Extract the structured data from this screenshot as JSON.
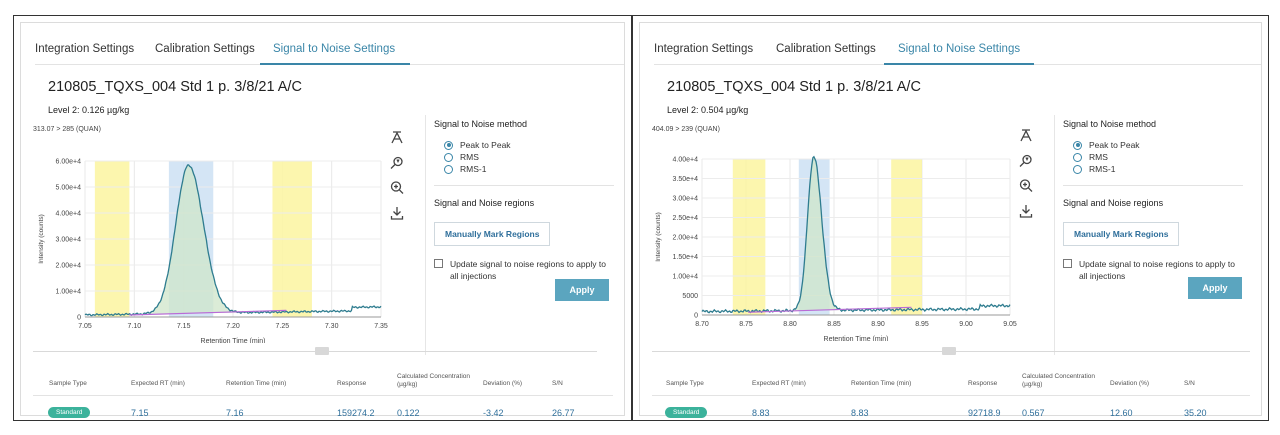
{
  "tabs": [
    "Integration Settings",
    "Calibration Settings",
    "Signal to Noise Settings"
  ],
  "sn_method_label": "Signal to Noise method",
  "methods": [
    "Peak to Peak",
    "RMS",
    "RMS-1"
  ],
  "regions_label": "Signal and Noise regions",
  "manual_button": "Manually Mark Regions",
  "update_checkbox": "Update signal to noise regions to apply to all injections",
  "apply_button": "Apply",
  "columns": [
    "Sample Type",
    "Expected RT (min)",
    "Retention Time (min)",
    "Response",
    "Calculated Concentration (µg/kg)",
    "Deviation (%)",
    "S/N"
  ],
  "icons": [
    "peak-edit-icon",
    "zoom-reset-icon",
    "zoom-in-icon",
    "download-icon"
  ],
  "colors": {
    "accent": "#3a86a8",
    "noise_region": "#fbf5a0",
    "signal_region": "#c9dff2",
    "trace": "#2e7c8f",
    "baseline": "#b96bd6",
    "badge": "#3bb29b"
  },
  "panels": [
    {
      "sample": "210805_TQXS_004   Std 1 p. 3/8/21 A/C",
      "level": "Level 2: 0.126 µg/kg",
      "trace_label": "313.07 > 285 (QUAN)",
      "row": {
        "type": "Standard",
        "expected_rt": "7.15",
        "rt": "7.16",
        "response": "159274.2",
        "conc": "0.122",
        "deviation": "-3.42",
        "sn": "26.77"
      },
      "chart_data": {
        "type": "line",
        "xlabel": "Retention Time (min)",
        "ylabel": "Intensity (counts)",
        "xlim": [
          7.05,
          7.35
        ],
        "ylim": [
          0,
          60000
        ],
        "xticks": [
          "7.05",
          "7.10",
          "7.15",
          "7.20",
          "7.25",
          "7.30",
          "7.35"
        ],
        "yticks": [
          "0",
          "1.00e+4",
          "2.00e+4",
          "3.00e+4",
          "4.00e+4",
          "5.00e+4",
          "6.00e+4"
        ],
        "noise_regions": [
          [
            7.06,
            7.095
          ],
          [
            7.24,
            7.28
          ]
        ],
        "signal_region": [
          7.135,
          7.18
        ],
        "peak": {
          "rt": 7.155,
          "height": 57000,
          "sigma_left": 0.013,
          "sigma_right": 0.015
        },
        "baseline": {
          "start": 800,
          "end": 2500,
          "tail": 3500
        }
      }
    },
    {
      "sample": "210805_TQXS_004   Std 1 p. 3/8/21 A/C",
      "level": "Level 2: 0.504 µg/kg",
      "trace_label": "404.09 > 239 (QUAN)",
      "row": {
        "type": "Standard",
        "expected_rt": "8.83",
        "rt": "8.83",
        "response": "92718.9",
        "conc": "0.567",
        "deviation": "12.60",
        "sn": "35.20"
      },
      "chart_data": {
        "type": "line",
        "xlabel": "Retention Time (min)",
        "ylabel": "Intensity (counts)",
        "xlim": [
          8.7,
          9.05
        ],
        "ylim": [
          0,
          40000
        ],
        "xticks": [
          "8.70",
          "8.75",
          "8.80",
          "8.85",
          "8.90",
          "8.95",
          "9.00",
          "9.05"
        ],
        "yticks": [
          "0",
          "5000",
          "1.00e+4",
          "1.50e+4",
          "2.00e+4",
          "2.50e+4",
          "3.00e+4",
          "3.50e+4",
          "4.00e+4"
        ],
        "noise_regions": [
          [
            8.735,
            8.772
          ],
          [
            8.915,
            8.95
          ]
        ],
        "signal_region": [
          8.81,
          8.845
        ],
        "peak": {
          "rt": 8.827,
          "height": 39500,
          "sigma_left": 0.007,
          "sigma_right": 0.009
        },
        "baseline": {
          "start": 900,
          "end": 1600,
          "tail": 2000
        }
      }
    }
  ]
}
